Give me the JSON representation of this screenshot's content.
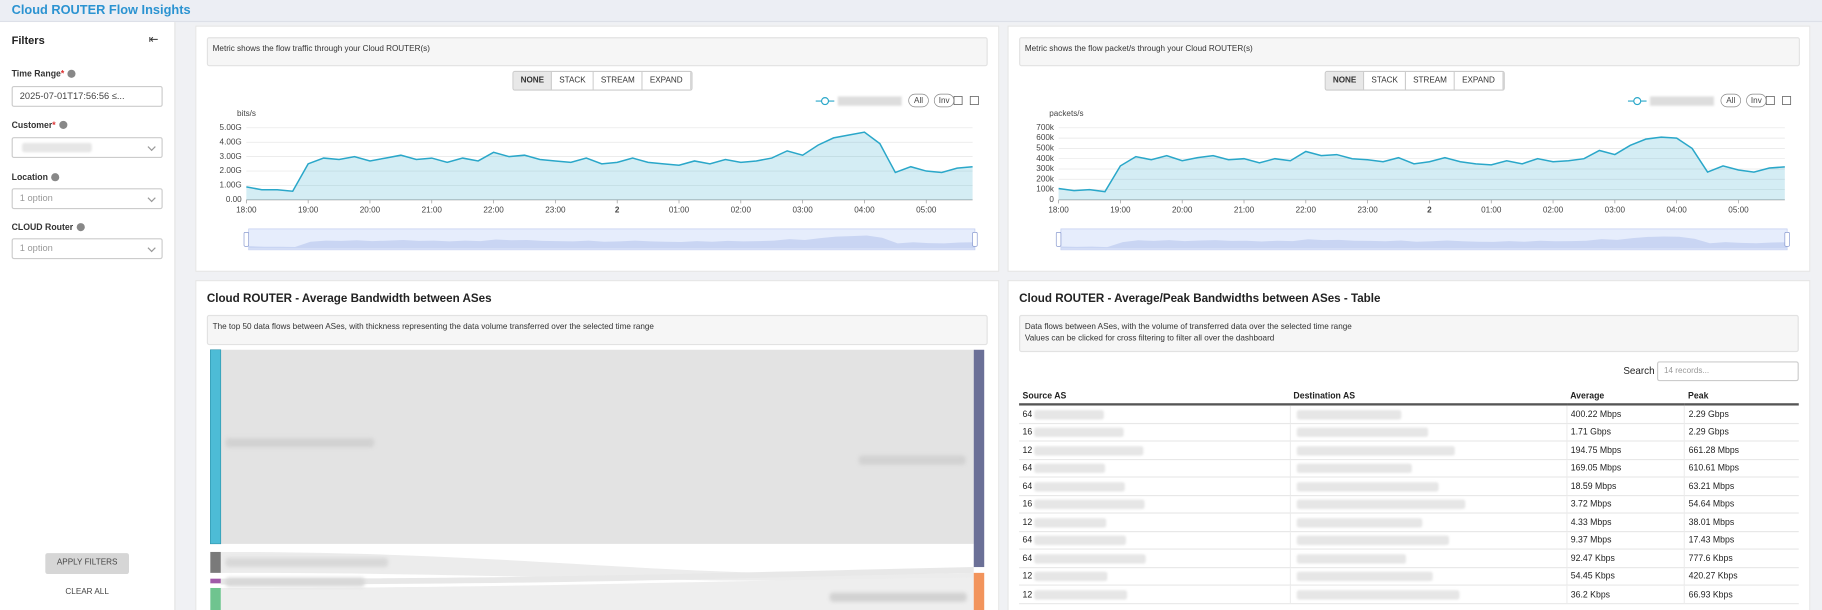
{
  "header": {
    "title": "Cloud ROUTER Flow Insights"
  },
  "filters": {
    "title": "Filters",
    "time_range": {
      "label": "Time Range",
      "required": "*",
      "value": "2025-07-01T17:56:56 ≤..."
    },
    "customer": {
      "label": "Customer",
      "required": "*"
    },
    "location": {
      "label": "Location",
      "placeholder": "1 option"
    },
    "cloud_router": {
      "label": "CLOUD Router",
      "placeholder": "1 option"
    },
    "apply": "APPLY FILTERS",
    "clear": "CLEAR ALL"
  },
  "chart_data": [
    {
      "type": "line",
      "description": "Metric shows the flow traffic through your Cloud ROUTER(s)",
      "modes": [
        "NONE",
        "STACK",
        "STREAM",
        "EXPAND"
      ],
      "legend_buttons": [
        "All",
        "Inv"
      ],
      "y_label": "bits/s",
      "color": "#2aa7c9",
      "values": [
        0.9,
        0.7,
        0.7,
        0.6,
        2.5,
        2.9,
        2.8,
        3.0,
        2.7,
        2.9,
        3.1,
        2.8,
        2.9,
        2.6,
        2.9,
        2.7,
        3.3,
        3.0,
        3.1,
        2.8,
        2.7,
        2.6,
        2.9,
        2.5,
        2.6,
        2.9,
        2.6,
        2.5,
        2.4,
        2.7,
        2.5,
        2.8,
        2.6,
        2.7,
        2.9,
        3.4,
        3.1,
        3.8,
        4.3,
        4.5,
        4.7,
        3.9,
        1.9,
        2.3,
        2.0,
        1.9,
        2.2,
        2.3
      ],
      "xlim": [
        0,
        47
      ],
      "xticks": [
        {
          "value": 0,
          "label": "18:00"
        },
        {
          "value": 4,
          "label": "19:00"
        },
        {
          "value": 8,
          "label": "20:00"
        },
        {
          "value": 12,
          "label": "21:00"
        },
        {
          "value": 16,
          "label": "22:00"
        },
        {
          "value": 20,
          "label": "23:00"
        },
        {
          "value": 24,
          "label": "2"
        },
        {
          "value": 28,
          "label": "01:00"
        },
        {
          "value": 32,
          "label": "02:00"
        },
        {
          "value": 36,
          "label": "03:00"
        },
        {
          "value": 40,
          "label": "04:00"
        },
        {
          "value": 44,
          "label": "05:00"
        }
      ],
      "ylim": [
        0,
        5
      ],
      "yticks": [
        {
          "value": 0,
          "label": "0.00"
        },
        {
          "value": 1,
          "label": "1.00G"
        },
        {
          "value": 2,
          "label": "2.00G"
        },
        {
          "value": 3,
          "label": "3.00G"
        },
        {
          "value": 4,
          "label": "4.00G"
        },
        {
          "value": 5,
          "label": "5.00G"
        }
      ]
    },
    {
      "type": "line",
      "description": "Metric shows the flow packet/s through your Cloud ROUTER(s)",
      "modes": [
        "NONE",
        "STACK",
        "STREAM",
        "EXPAND"
      ],
      "legend_buttons": [
        "All",
        "Inv"
      ],
      "y_label": "packets/s",
      "color": "#2aa7c9",
      "values": [
        110,
        90,
        100,
        80,
        330,
        420,
        390,
        430,
        380,
        410,
        430,
        390,
        400,
        360,
        400,
        380,
        470,
        430,
        440,
        400,
        390,
        370,
        410,
        350,
        370,
        410,
        370,
        350,
        340,
        380,
        350,
        400,
        370,
        380,
        400,
        480,
        440,
        530,
        590,
        610,
        600,
        500,
        270,
        330,
        290,
        270,
        310,
        320
      ],
      "xlim": [
        0,
        47
      ],
      "xticks": [
        {
          "value": 0,
          "label": "18:00"
        },
        {
          "value": 4,
          "label": "19:00"
        },
        {
          "value": 8,
          "label": "20:00"
        },
        {
          "value": 12,
          "label": "21:00"
        },
        {
          "value": 16,
          "label": "22:00"
        },
        {
          "value": 20,
          "label": "23:00"
        },
        {
          "value": 24,
          "label": "2"
        },
        {
          "value": 28,
          "label": "01:00"
        },
        {
          "value": 32,
          "label": "02:00"
        },
        {
          "value": 36,
          "label": "03:00"
        },
        {
          "value": 40,
          "label": "04:00"
        },
        {
          "value": 44,
          "label": "05:00"
        }
      ],
      "ylim": [
        0,
        700
      ],
      "yticks": [
        0,
        {
          "value": 100,
          "label": "100k"
        },
        {
          "value": 200,
          "label": "200k"
        },
        {
          "value": 300,
          "label": "300k"
        },
        {
          "value": 400,
          "label": "400k"
        },
        {
          "value": 500,
          "label": "500k"
        },
        {
          "value": 600,
          "label": "600k"
        },
        {
          "value": 700,
          "label": "700k"
        }
      ]
    }
  ],
  "sankey": {
    "title": "Cloud ROUTER - Average Bandwidth between ASes",
    "description": "The top 50 data flows between ASes, with thickness representing the data volume transferred over the selected time range"
  },
  "table": {
    "title": "Cloud ROUTER - Average/Peak Bandwidths between ASes - Table",
    "description": [
      "Data flows between ASes, with the volume of transferred data over the selected time range",
      "Values can be clicked for cross filtering to filter all over the dashboard"
    ],
    "search_label": "Search",
    "search_placeholder": "14 records...",
    "columns": [
      "Source AS",
      "Destination AS",
      "Average",
      "Peak"
    ],
    "rows": [
      {
        "source": "64",
        "average": "400.22 Mbps",
        "peak": "2.29 Gbps"
      },
      {
        "source": "16",
        "average": "1.71 Gbps",
        "peak": "2.29 Gbps"
      },
      {
        "source": "12",
        "average": "194.75 Mbps",
        "peak": "661.28 Mbps"
      },
      {
        "source": "64",
        "average": "169.05 Mbps",
        "peak": "610.61 Mbps"
      },
      {
        "source": "64",
        "average": "18.59 Mbps",
        "peak": "63.21 Mbps"
      },
      {
        "source": "16",
        "average": "3.72 Mbps",
        "peak": "54.64 Mbps"
      },
      {
        "source": "12",
        "average": "4.33 Mbps",
        "peak": "38.01 Mbps"
      },
      {
        "source": "64",
        "average": "9.37 Mbps",
        "peak": "17.43 Mbps"
      },
      {
        "source": "64",
        "average": "92.47 Kbps",
        "peak": "777.6 Kbps"
      },
      {
        "source": "12",
        "average": "54.45 Kbps",
        "peak": "420.27 Kbps"
      },
      {
        "source": "12",
        "average": "36.2 Kbps",
        "peak": "66.93 Kbps"
      }
    ]
  }
}
